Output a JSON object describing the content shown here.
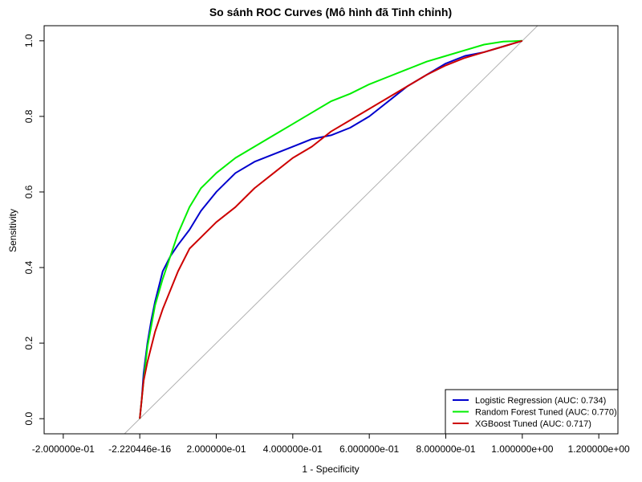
{
  "chart_data": {
    "type": "line",
    "title": "So sánh ROC Curves (Mô hình đã Tinh chỉnh)",
    "xlabel": "1 - Specificity",
    "ylabel": "Sensitivity",
    "xlim": [
      -0.25,
      1.25
    ],
    "ylim": [
      -0.04,
      1.04
    ],
    "x_ticks": [
      {
        "value": -0.2,
        "label": "-2.000000e-01"
      },
      {
        "value": 0.0,
        "label": "-2.220446e-16"
      },
      {
        "value": 0.2,
        "label": "2.000000e-01"
      },
      {
        "value": 0.4,
        "label": "4.000000e-01"
      },
      {
        "value": 0.6,
        "label": "6.000000e-01"
      },
      {
        "value": 0.8,
        "label": "8.000000e-01"
      },
      {
        "value": 1.0,
        "label": "1.000000e+00"
      },
      {
        "value": 1.2,
        "label": "1.200000e+00"
      }
    ],
    "y_ticks": [
      {
        "value": 0.0,
        "label": "0.0"
      },
      {
        "value": 0.2,
        "label": "0.2"
      },
      {
        "value": 0.4,
        "label": "0.4"
      },
      {
        "value": 0.6,
        "label": "0.6"
      },
      {
        "value": 0.8,
        "label": "0.8"
      },
      {
        "value": 1.0,
        "label": "1.0"
      }
    ],
    "reference_line": {
      "x": [
        -0.04,
        1.04
      ],
      "y": [
        -0.04,
        1.04
      ],
      "color": "#b0b0b0"
    },
    "legend_position": "bottom-right",
    "series": [
      {
        "name": "Logistic Regression (AUC: 0.734)",
        "color": "#0000cd",
        "x": [
          0,
          0.005,
          0.01,
          0.02,
          0.03,
          0.04,
          0.06,
          0.08,
          0.1,
          0.13,
          0.16,
          0.2,
          0.25,
          0.3,
          0.35,
          0.4,
          0.45,
          0.5,
          0.55,
          0.6,
          0.65,
          0.7,
          0.75,
          0.8,
          0.85,
          0.9,
          0.95,
          1.0
        ],
        "y": [
          0,
          0.05,
          0.12,
          0.2,
          0.26,
          0.31,
          0.39,
          0.43,
          0.46,
          0.5,
          0.55,
          0.6,
          0.65,
          0.68,
          0.7,
          0.72,
          0.74,
          0.75,
          0.77,
          0.8,
          0.84,
          0.88,
          0.91,
          0.94,
          0.96,
          0.97,
          0.985,
          1.0
        ]
      },
      {
        "name": "Random Forest Tuned (AUC: 0.770)",
        "color": "#00ee00",
        "x": [
          0,
          0.005,
          0.01,
          0.02,
          0.04,
          0.06,
          0.08,
          0.1,
          0.13,
          0.16,
          0.2,
          0.25,
          0.3,
          0.35,
          0.4,
          0.45,
          0.5,
          0.55,
          0.6,
          0.65,
          0.7,
          0.75,
          0.8,
          0.85,
          0.9,
          0.95,
          1.0
        ],
        "y": [
          0,
          0.05,
          0.1,
          0.19,
          0.3,
          0.37,
          0.43,
          0.49,
          0.56,
          0.61,
          0.65,
          0.69,
          0.72,
          0.75,
          0.78,
          0.81,
          0.84,
          0.86,
          0.885,
          0.905,
          0.925,
          0.945,
          0.96,
          0.975,
          0.99,
          0.998,
          1.0
        ]
      },
      {
        "name": "XGBoost Tuned (AUC: 0.717)",
        "color": "#cd0000",
        "x": [
          0,
          0.005,
          0.01,
          0.02,
          0.04,
          0.06,
          0.08,
          0.1,
          0.13,
          0.16,
          0.2,
          0.25,
          0.3,
          0.35,
          0.4,
          0.45,
          0.5,
          0.55,
          0.6,
          0.65,
          0.7,
          0.75,
          0.8,
          0.85,
          0.9,
          0.95,
          1.0
        ],
        "y": [
          0,
          0.05,
          0.1,
          0.15,
          0.23,
          0.29,
          0.34,
          0.39,
          0.45,
          0.48,
          0.52,
          0.56,
          0.61,
          0.65,
          0.69,
          0.72,
          0.76,
          0.79,
          0.82,
          0.85,
          0.88,
          0.91,
          0.935,
          0.955,
          0.97,
          0.985,
          1.0
        ]
      }
    ]
  }
}
